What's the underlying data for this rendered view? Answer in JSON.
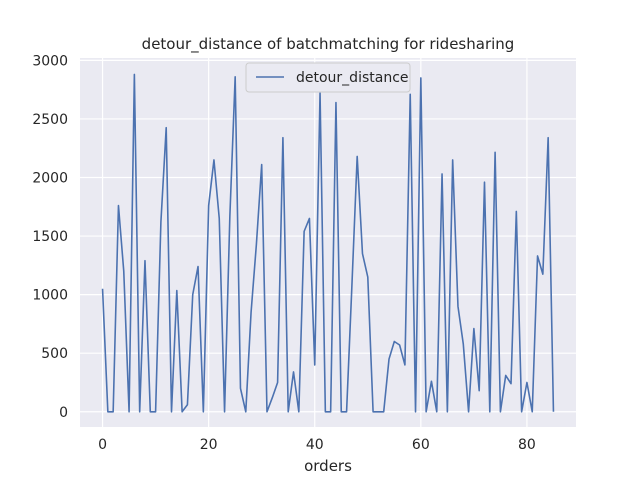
{
  "chart_data": {
    "type": "line",
    "title": "detour_distance of batchmatching for ridesharing",
    "xlabel": "orders",
    "ylabel": "",
    "xlim": [
      -4.25,
      89.25
    ],
    "ylim": [
      -130,
      3020
    ],
    "xticks": [
      0,
      20,
      40,
      60,
      80
    ],
    "yticks": [
      0,
      500,
      1000,
      1500,
      2000,
      2500,
      3000
    ],
    "grid": true,
    "legend_position": "top-center",
    "series": [
      {
        "name": "detour_distance",
        "color": "#4c72b0",
        "x": [
          0,
          1,
          2,
          3,
          4,
          5,
          6,
          7,
          8,
          9,
          10,
          11,
          12,
          13,
          14,
          15,
          16,
          17,
          18,
          19,
          20,
          21,
          22,
          23,
          24,
          25,
          26,
          27,
          28,
          29,
          30,
          31,
          32,
          33,
          34,
          35,
          36,
          37,
          38,
          39,
          40,
          41,
          42,
          43,
          44,
          45,
          46,
          47,
          48,
          49,
          50,
          51,
          52,
          53,
          54,
          55,
          56,
          57,
          58,
          59,
          60,
          61,
          62,
          63,
          64,
          65,
          66,
          67,
          68,
          69,
          70,
          71,
          72,
          73,
          74,
          75,
          76,
          77,
          78,
          79,
          80,
          81,
          82,
          83,
          84,
          85
        ],
        "values": [
          1050,
          0,
          0,
          1760,
          1200,
          0,
          2880,
          0,
          1290,
          0,
          0,
          1620,
          2425,
          0,
          1035,
          0,
          60,
          1000,
          1240,
          0,
          1760,
          2150,
          1650,
          0,
          1670,
          2860,
          200,
          0,
          850,
          1430,
          2110,
          0,
          120,
          250,
          2340,
          0,
          340,
          0,
          1540,
          1650,
          400,
          2720,
          0,
          0,
          2640,
          0,
          0,
          1070,
          2180,
          1350,
          1150,
          0,
          0,
          0,
          450,
          600,
          570,
          400,
          2710,
          0,
          2850,
          0,
          260,
          0,
          2030,
          0,
          2150,
          900,
          580,
          0,
          710,
          180,
          1960,
          0,
          2215,
          0,
          310,
          240,
          1710,
          0,
          250,
          0,
          1330,
          1175,
          2340,
          0
        ]
      }
    ]
  }
}
